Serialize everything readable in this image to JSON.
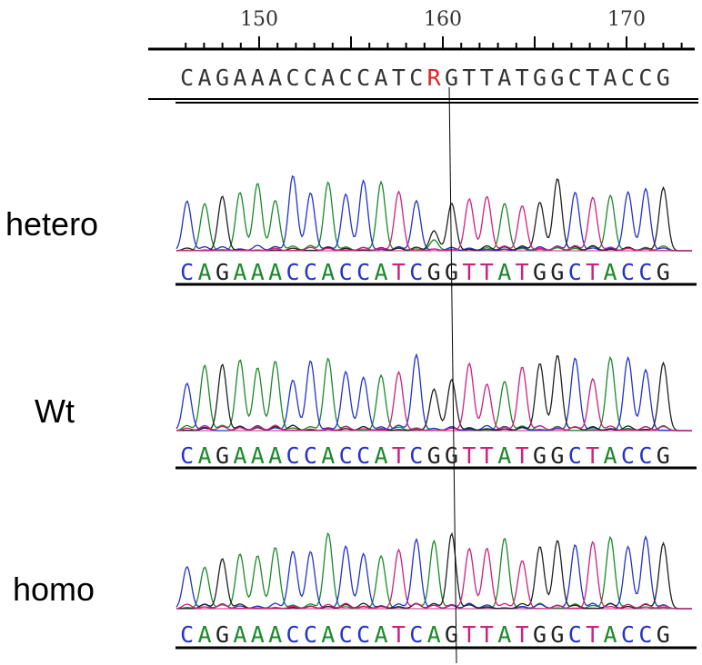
{
  "ruler": {
    "ticks": [
      "150",
      "160",
      "170"
    ]
  },
  "consensus": {
    "sequence": "CAGAAACCACCATCRGTTATGGCTACCG",
    "variant_index": 14
  },
  "colors": {
    "A": "#1a8a2a",
    "C": "#2233cc",
    "G": "#222222",
    "T": "#d0207e",
    "variant": "#e02020"
  },
  "samples": [
    {
      "label": "hetero",
      "sequence": "CAGAAACCACCATCGGTTATGGCTACCG"
    },
    {
      "label": "Wt",
      "sequence": "CAGAAACCACCATCGGTTATGGCTACCG"
    },
    {
      "label": "homo",
      "sequence": "CAGAAACCACCATCAGTTATGGCTACCG"
    }
  ]
}
